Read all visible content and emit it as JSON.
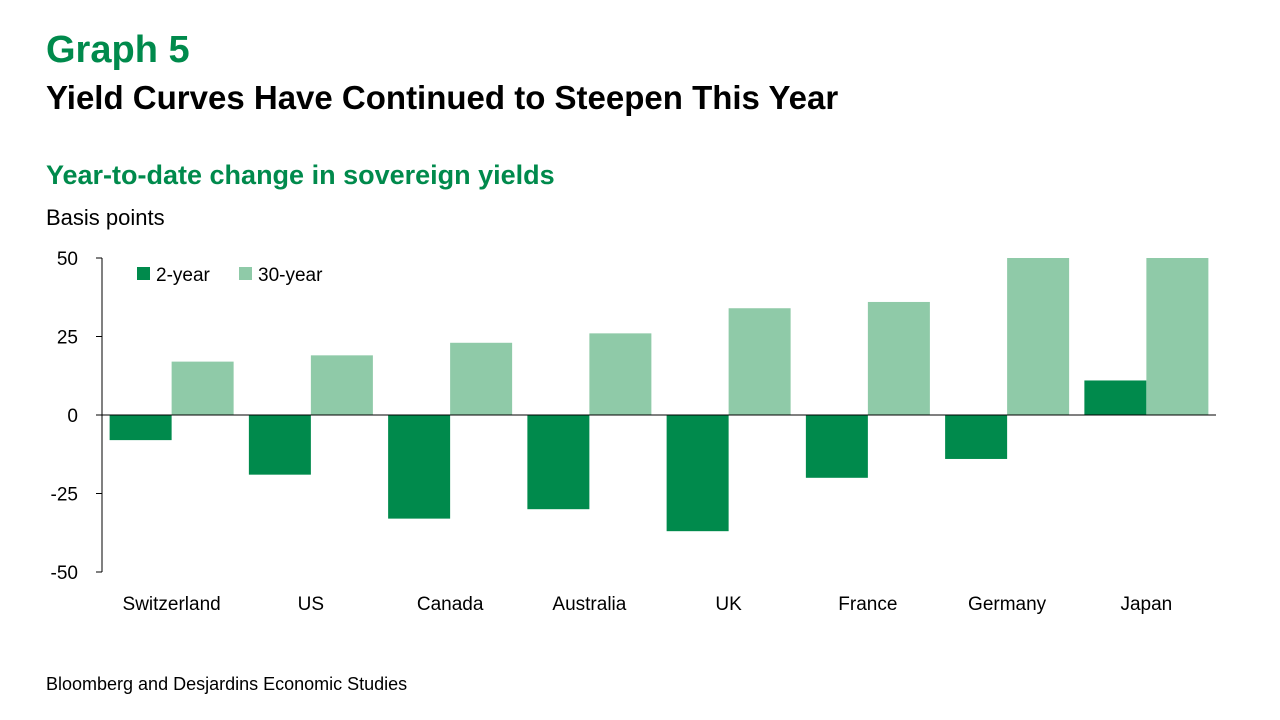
{
  "header": {
    "graph_number": "Graph 5",
    "title": "Yield Curves Have Continued to Steepen This Year"
  },
  "chart_data": {
    "type": "bar",
    "title": "Year-to-date change in sovereign yields",
    "ylabel": "Basis points",
    "xlabel": "",
    "categories": [
      "Switzerland",
      "US",
      "Canada",
      "Australia",
      "UK",
      "France",
      "Germany",
      "Japan"
    ],
    "series": [
      {
        "name": "2-year",
        "color": "#008a4c",
        "values": [
          -8,
          -19,
          -33,
          -30,
          -37,
          -20,
          -14,
          11
        ]
      },
      {
        "name": "30-year",
        "color": "#8fcaa8",
        "values": [
          17,
          19,
          23,
          26,
          34,
          36,
          50,
          50
        ]
      }
    ],
    "ylim": [
      -50,
      50
    ],
    "yticks": [
      50,
      25,
      0,
      -25,
      -50
    ],
    "grid": false,
    "legend_position": "top-left"
  },
  "footer": {
    "source": "Bloomberg and Desjardins Economic Studies"
  }
}
